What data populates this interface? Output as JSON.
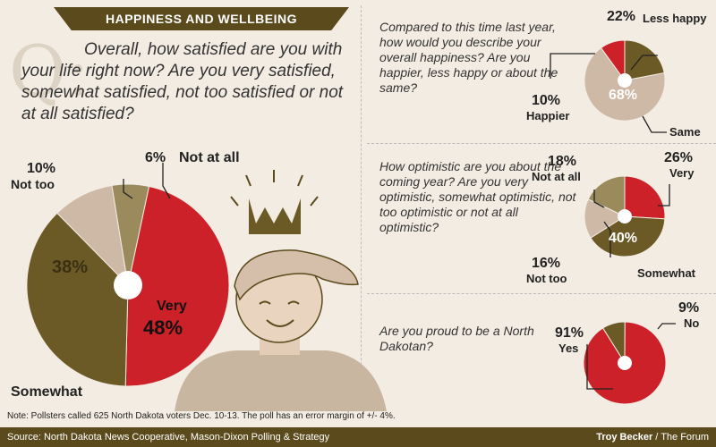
{
  "header": {
    "banner": "HAPPINESS AND WELLBEING",
    "q_letter": "Q:"
  },
  "main_question": "Overall, how satisfied are you with your life right now? Are you very satisfied, somewhat satisfied, not too satisfied or not at all satisfied?",
  "colors": {
    "red": "#cc2128",
    "olive": "#6b5a25",
    "tan": "#cdb9a6",
    "khaki": "#9a8a5c",
    "dark": "#5a4a1c"
  },
  "chart_data": [
    {
      "type": "pie",
      "id": "satisfaction",
      "labels": [
        "Very",
        "Somewhat",
        "Not too",
        "Not at all"
      ],
      "values": [
        48,
        38,
        10,
        6
      ],
      "value_labels": [
        "48%",
        "38%",
        "10%",
        "6%"
      ]
    },
    {
      "type": "pie",
      "id": "happiness",
      "question": "Compared to this time last year, how would you describe your overall happiness? Are you happier, less happy or about the same?",
      "labels": [
        "Happier",
        "Less happy",
        "Same"
      ],
      "values": [
        10,
        22,
        68
      ],
      "value_labels": [
        "10%",
        "22%",
        "68%"
      ]
    },
    {
      "type": "pie",
      "id": "optimism",
      "question": "How optimistic are you about the coming year? Are you very optimistic, somewhat optimistic, not too optimistic or not at all optimistic?",
      "labels": [
        "Very",
        "Somewhat",
        "Not too",
        "Not at all"
      ],
      "values": [
        26,
        40,
        16,
        18
      ],
      "value_labels": [
        "26%",
        "40%",
        "16%",
        "18%"
      ]
    },
    {
      "type": "pie",
      "id": "proud",
      "question": "Are you proud to be a North Dakotan?",
      "labels": [
        "Yes",
        "No"
      ],
      "values": [
        91,
        9
      ],
      "value_labels": [
        "91%",
        "9%"
      ]
    }
  ],
  "footer": {
    "note": "Note: Pollsters called 625 North Dakota voters Dec. 10-13. The poll has an error margin of +/- 4%.",
    "source": "Source: North Dakota News Cooperative, Mason-Dixon Polling & Strategy",
    "credit_name": "Troy Becker",
    "credit_org": " / The Forum"
  }
}
